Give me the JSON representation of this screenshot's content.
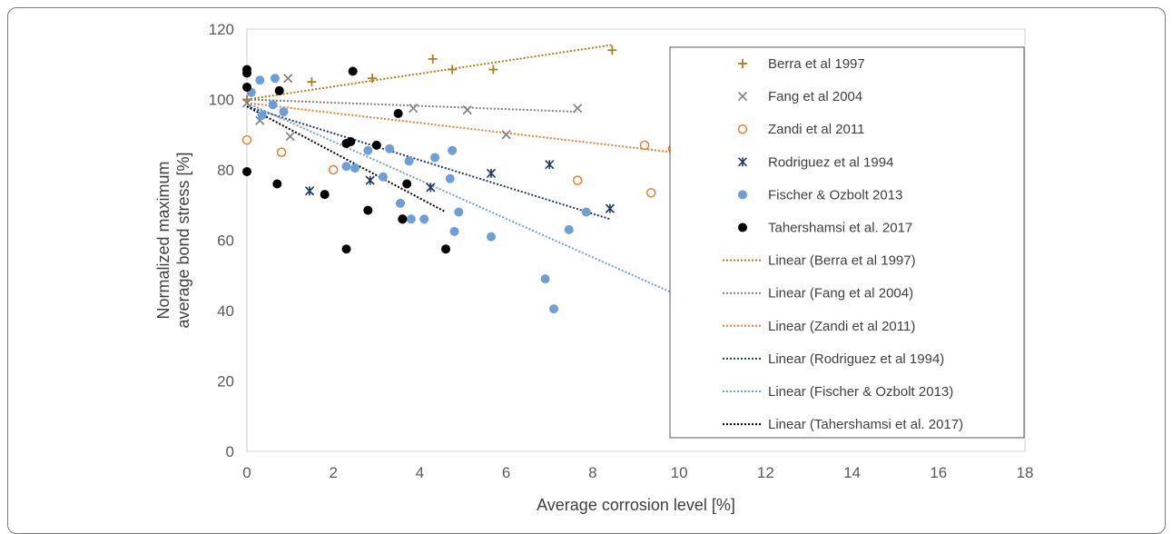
{
  "chart_data": {
    "type": "scatter",
    "xlabel": "Average corrosion level [%]",
    "ylabel_lines": [
      "Normalized maximum",
      "average bond stress [%]"
    ],
    "xlim": [
      0,
      18
    ],
    "ylim": [
      0,
      120
    ],
    "xticks": [
      "0",
      "2",
      "4",
      "6",
      "8",
      "10",
      "12",
      "14",
      "16",
      "18"
    ],
    "yticks": [
      "0",
      "20",
      "40",
      "60",
      "80",
      "100",
      "120"
    ],
    "grid": false,
    "legend_position": "right",
    "series": [
      {
        "name": "Berra et al 1997",
        "marker": "plus",
        "color": "#a97f1d",
        "points": [
          [
            0,
            100
          ],
          [
            1.5,
            105
          ],
          [
            2.9,
            106
          ],
          [
            4.3,
            111.5
          ],
          [
            4.75,
            108.5
          ],
          [
            5.7,
            108.5
          ],
          [
            8.45,
            114
          ]
        ],
        "trend": [
          [
            0,
            100
          ],
          [
            8.45,
            115.5
          ]
        ]
      },
      {
        "name": "Fang et al 2004",
        "marker": "cross",
        "color": "#7f7f7f",
        "points": [
          [
            0,
            99
          ],
          [
            0.3,
            94
          ],
          [
            0.95,
            106
          ],
          [
            1.0,
            89.5
          ],
          [
            3.85,
            97.5
          ],
          [
            5.1,
            97
          ],
          [
            6.0,
            90
          ],
          [
            7.65,
            97.5
          ]
        ],
        "trend": [
          [
            0,
            100
          ],
          [
            7.65,
            96.5
          ]
        ]
      },
      {
        "name": "Zandi et al 2011",
        "marker": "circle-open",
        "color": "#ed7d31",
        "points": [
          [
            0,
            88.5
          ],
          [
            0.8,
            85
          ],
          [
            2.0,
            80
          ],
          [
            3.6,
            66
          ],
          [
            7.65,
            77
          ],
          [
            9.2,
            87
          ],
          [
            9.35,
            73.5
          ],
          [
            9.85,
            86
          ]
        ],
        "trend": [
          [
            0,
            99
          ],
          [
            9.85,
            85
          ]
        ]
      },
      {
        "name": "Rodriguez et al 1994",
        "marker": "asterisk",
        "color": "#1f3864",
        "points": [
          [
            1.45,
            74
          ],
          [
            2.85,
            77
          ],
          [
            4.25,
            75
          ],
          [
            5.65,
            79
          ],
          [
            7.0,
            81.5
          ],
          [
            8.4,
            69
          ]
        ],
        "trend": [
          [
            0,
            98
          ],
          [
            8.4,
            66
          ]
        ]
      },
      {
        "name": "Fischer & Ozbolt 2013",
        "marker": "circle-filled",
        "color": "#6f9ed7",
        "points": [
          [
            0.1,
            102
          ],
          [
            0.3,
            105.5
          ],
          [
            0.6,
            98.5
          ],
          [
            0.65,
            106
          ],
          [
            0.35,
            95.5
          ],
          [
            0.85,
            96.5
          ],
          [
            2.3,
            81
          ],
          [
            2.5,
            80.5
          ],
          [
            2.8,
            85.5
          ],
          [
            3.15,
            78
          ],
          [
            3.3,
            86
          ],
          [
            3.55,
            70.5
          ],
          [
            3.75,
            82.5
          ],
          [
            3.8,
            66
          ],
          [
            4.1,
            66
          ],
          [
            4.35,
            83.5
          ],
          [
            4.7,
            77.5
          ],
          [
            4.75,
            85.5
          ],
          [
            4.8,
            62.5
          ],
          [
            4.9,
            68
          ],
          [
            5.65,
            61
          ],
          [
            6.9,
            49
          ],
          [
            7.1,
            40.5
          ],
          [
            7.45,
            63
          ],
          [
            7.85,
            68
          ]
        ],
        "trend": [
          [
            0,
            99
          ],
          [
            9.85,
            45
          ]
        ]
      },
      {
        "name": "Tahershamsi et al. 2017",
        "marker": "circle-filled",
        "color": "#000000",
        "points": [
          [
            0,
            108.5
          ],
          [
            0,
            107.5
          ],
          [
            0,
            103.5
          ],
          [
            0,
            79.5
          ],
          [
            0.7,
            76
          ],
          [
            0.75,
            102.5
          ],
          [
            1.8,
            73
          ],
          [
            2.3,
            57.5
          ],
          [
            2.3,
            87.5
          ],
          [
            2.4,
            88
          ],
          [
            2.45,
            108
          ],
          [
            2.8,
            68.5
          ],
          [
            3.0,
            87
          ],
          [
            3.5,
            96
          ],
          [
            3.6,
            66
          ],
          [
            3.7,
            76
          ],
          [
            4.6,
            57.5
          ]
        ],
        "trend": [
          [
            0,
            98
          ],
          [
            4.6,
            68
          ]
        ]
      }
    ],
    "legend_entries": [
      "Berra et al 1997",
      "Fang et al 2004",
      "Zandi et al 2011",
      "Rodriguez et al 1994",
      "Fischer & Ozbolt 2013",
      "Tahershamsi et al. 2017",
      "Linear (Berra et al 1997)",
      "Linear (Fang et al 2004)",
      "Linear (Zandi et al 2011)",
      "Linear (Rodriguez et al 1994)",
      "Linear (Fischer & Ozbolt 2013)",
      "Linear (Tahershamsi et al. 2017)"
    ]
  }
}
